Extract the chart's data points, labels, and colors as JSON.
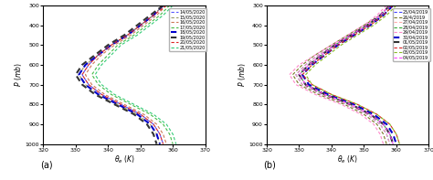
{
  "panel_a": {
    "label": "(a)",
    "dates": [
      "14/05/2020",
      "15/05/2020",
      "16/05/2020",
      "17/05/2020",
      "18/05/2020",
      "19/05/2020",
      "20/05/2020",
      "21/05/2020"
    ],
    "colors": [
      "#5555ff",
      "#999966",
      "#cc7755",
      "#44bb44",
      "#0000cc",
      "#333333",
      "#dd2222",
      "#33cc77"
    ],
    "bold": [
      false,
      false,
      false,
      false,
      true,
      true,
      false,
      false
    ],
    "xlabel": "$\\theta_e\\ (K)$",
    "ylabel": "$P\\ (mb)$",
    "xlim": [
      320,
      370
    ],
    "ylim": [
      1000,
      300
    ],
    "xticks": [
      320,
      330,
      340,
      350,
      360,
      370
    ],
    "yticks": [
      300,
      400,
      500,
      600,
      700,
      800,
      900,
      1000
    ]
  },
  "panel_b": {
    "label": "(b)",
    "dates": [
      "25/04/2019",
      "26/4/2019",
      "27/04/2019",
      "28/04/2019",
      "29/04/2019",
      "30/04/2019",
      "01/05/2019",
      "02/05/2019",
      "03/05/2019",
      "04/05/2019"
    ],
    "colors": [
      "#4444ff",
      "#777722",
      "#ffaaaa",
      "#33aa33",
      "#ff88cc",
      "#0000cc",
      "#333333",
      "#dd2222",
      "#88bb22",
      "#ff44ff"
    ],
    "bold": [
      false,
      false,
      false,
      false,
      false,
      true,
      true,
      false,
      false,
      false
    ],
    "xlabel": "$\\theta_e\\ (K)$",
    "ylabel": "$P\\ (mb)$",
    "xlim": [
      320,
      370
    ],
    "ylim": [
      1000,
      300
    ],
    "xticks": [
      320,
      330,
      340,
      350,
      360,
      370
    ],
    "yticks": [
      300,
      400,
      500,
      600,
      700,
      800,
      900,
      1000
    ]
  },
  "pressure_levels": [
    300,
    350,
    400,
    450,
    500,
    550,
    600,
    650,
    700,
    750,
    800,
    850,
    900,
    950,
    1000
  ],
  "profiles_a": [
    [
      357,
      354,
      350,
      346,
      341,
      337,
      334,
      332,
      334,
      338,
      344,
      350,
      354,
      356,
      357
    ],
    [
      357,
      354,
      350,
      346,
      341,
      337,
      333,
      331,
      333,
      337,
      343,
      349,
      353,
      355,
      356
    ],
    [
      358,
      355,
      351,
      347,
      342,
      338,
      335,
      333,
      335,
      339,
      345,
      351,
      355,
      357,
      358
    ],
    [
      359,
      356,
      352,
      348,
      343,
      340,
      337,
      335,
      337,
      341,
      347,
      353,
      357,
      359,
      360
    ],
    [
      357,
      354,
      350,
      346,
      341,
      337,
      333,
      331,
      333,
      337,
      343,
      349,
      353,
      355,
      356
    ],
    [
      357,
      353,
      349,
      345,
      340,
      336,
      332,
      330,
      332,
      336,
      342,
      348,
      352,
      354,
      355
    ],
    [
      358,
      354,
      350,
      346,
      341,
      337,
      334,
      332,
      334,
      338,
      344,
      350,
      354,
      356,
      357
    ],
    [
      360,
      357,
      353,
      349,
      344,
      341,
      338,
      336,
      338,
      342,
      348,
      354,
      358,
      360,
      361
    ]
  ],
  "profiles_b": [
    [
      358,
      355,
      351,
      346,
      341,
      336,
      332,
      329,
      331,
      337,
      345,
      351,
      355,
      357,
      358
    ],
    [
      358,
      355,
      350,
      345,
      340,
      335,
      331,
      328,
      330,
      336,
      344,
      350,
      354,
      356,
      357
    ],
    [
      358,
      355,
      351,
      346,
      341,
      336,
      332,
      329,
      331,
      337,
      345,
      351,
      355,
      357,
      358
    ],
    [
      359,
      356,
      351,
      346,
      341,
      337,
      333,
      330,
      332,
      338,
      346,
      352,
      356,
      358,
      359
    ],
    [
      357,
      354,
      350,
      345,
      340,
      335,
      330,
      327,
      329,
      335,
      343,
      349,
      353,
      355,
      356
    ],
    [
      359,
      356,
      352,
      347,
      342,
      338,
      334,
      331,
      333,
      339,
      347,
      353,
      357,
      359,
      360
    ],
    [
      358,
      355,
      351,
      346,
      341,
      337,
      333,
      330,
      332,
      338,
      346,
      352,
      356,
      358,
      359
    ],
    [
      359,
      356,
      352,
      347,
      342,
      338,
      334,
      331,
      334,
      340,
      348,
      354,
      358,
      360,
      361
    ],
    [
      360,
      357,
      353,
      348,
      343,
      339,
      335,
      332,
      334,
      340,
      348,
      354,
      358,
      360,
      361
    ],
    [
      358,
      355,
      351,
      346,
      341,
      337,
      333,
      330,
      332,
      338,
      346,
      352,
      356,
      358,
      359
    ]
  ]
}
